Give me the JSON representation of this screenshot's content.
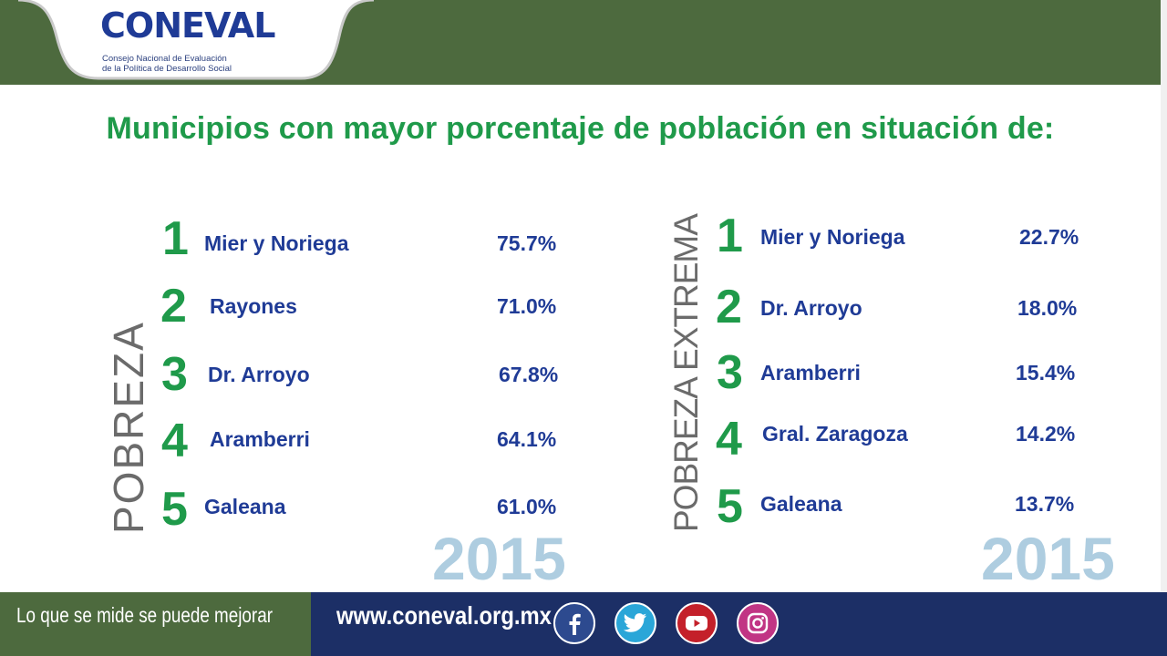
{
  "logo": {
    "brand_pre": "CO",
    "brand_n": "N",
    "brand_post": "EVAL",
    "subtitle_line1": "Consejo Nacional de Evaluación",
    "subtitle_line2": "de la Política de Desarrollo Social"
  },
  "title": "Municipios con mayor porcentaje de población en situación de:",
  "pobreza": {
    "label": "POBREZA",
    "year": "2015",
    "items": [
      {
        "rank": "1",
        "name": "Mier y Noriega",
        "pct": "75.7%"
      },
      {
        "rank": "2",
        "name": "Rayones",
        "pct": "71.0%"
      },
      {
        "rank": "3",
        "name": "Dr. Arroyo",
        "pct": "67.8%"
      },
      {
        "rank": "4",
        "name": "Aramberri",
        "pct": "64.1%"
      },
      {
        "rank": "5",
        "name": "Galeana",
        "pct": "61.0%"
      }
    ]
  },
  "extrema": {
    "label": "POBREZA EXTREMA",
    "year": "2015",
    "items": [
      {
        "rank": "1",
        "name": "Mier y Noriega",
        "pct": "22.7%"
      },
      {
        "rank": "2",
        "name": "Dr. Arroyo",
        "pct": "18.0%"
      },
      {
        "rank": "3",
        "name": "Aramberri",
        "pct": "15.4%"
      },
      {
        "rank": "4",
        "name": "Gral. Zaragoza",
        "pct": "14.2%"
      },
      {
        "rank": "5",
        "name": "Galeana",
        "pct": "13.7%"
      }
    ]
  },
  "footer": {
    "slogan": "Lo que se mide se puede mejorar",
    "url": "www.coneval.org.mx",
    "social": [
      {
        "icon": "facebook-icon",
        "color": "#2d4a8f"
      },
      {
        "icon": "twitter-icon",
        "color": "#2aa6d8"
      },
      {
        "icon": "youtube-icon",
        "color": "#c4202a"
      },
      {
        "icon": "instagram-icon",
        "color": "#c13584"
      }
    ]
  },
  "colors": {
    "green": "#1f9a4a",
    "navy": "#1f3b96",
    "header_green": "#4d6a3e",
    "footer_navy": "#1c2f66",
    "year": "#aecde0"
  }
}
